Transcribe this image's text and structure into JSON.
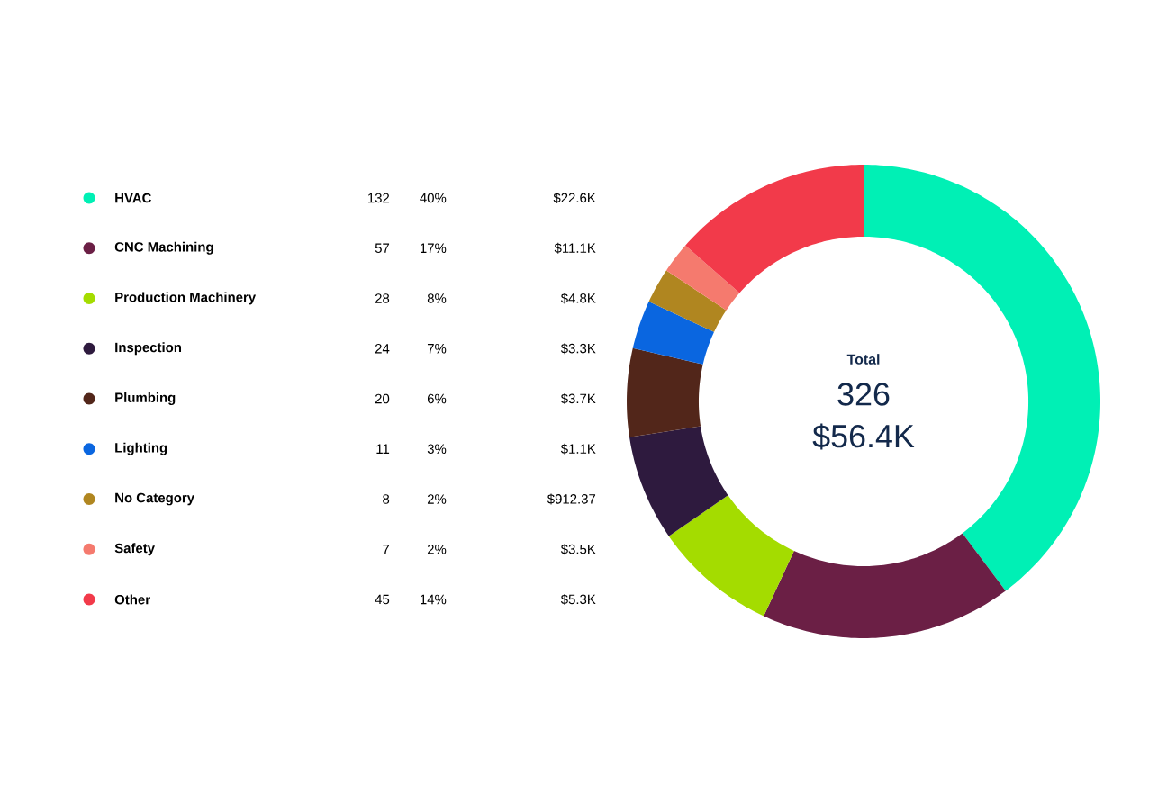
{
  "chart_data": {
    "type": "donut",
    "categories": [
      "HVAC",
      "CNC Machining",
      "Production Machinery",
      "Inspection",
      "Plumbing",
      "Lighting",
      "No Category",
      "Safety",
      "Other"
    ],
    "values": [
      132,
      57,
      28,
      24,
      20,
      11,
      8,
      7,
      45
    ],
    "colors": [
      "#00f0b5",
      "#6b1f45",
      "#a4dc00",
      "#2e1a3e",
      "#52261a",
      "#0a66e0",
      "#b08620",
      "#f57a6e",
      "#f23a4a"
    ],
    "data_labels": true,
    "legend": "left",
    "annotations": [
      "40%",
      "17%",
      "8%",
      "7%",
      "6%",
      "3%",
      "2%",
      "2%",
      "14%",
      "$22.6K",
      "$11.1K",
      "$4.8K",
      "$3.3K",
      "$3.7K",
      "$1.1K",
      "$912.37",
      "$3.5K",
      "$5.3K",
      "Total",
      "326",
      "$56.4K"
    ]
  }
}
